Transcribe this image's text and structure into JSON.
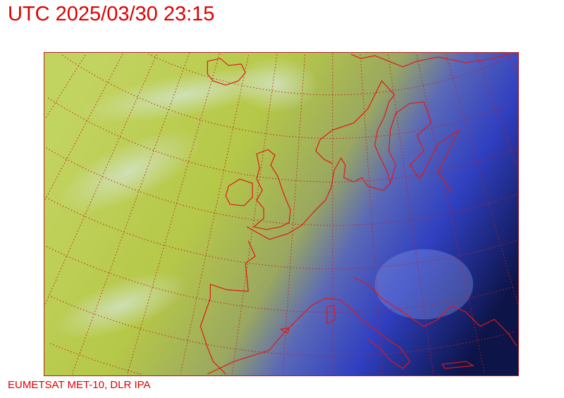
{
  "title": "UTC 2025/03/30 23:15",
  "credit": "EUMETSAT MET-10, DLR IPA",
  "map": {
    "region": "Europe",
    "colors": {
      "coastline": "#e01818",
      "grid": "#c02020",
      "warm": "#b8cc40",
      "mid": "#9aac5a",
      "cold": "#3a4cc8",
      "night": "#0c1448"
    }
  }
}
